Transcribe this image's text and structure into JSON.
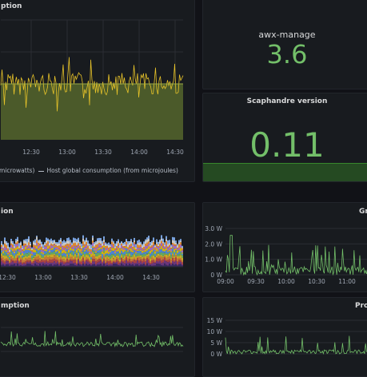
{
  "colors": {
    "background": "#111217",
    "panel": "#181b1f",
    "green": "#73bf69",
    "yellow": "#e6c229",
    "olive_fill": "#4b5a2a"
  },
  "panel_main": {
    "title": "ption",
    "legend": [
      "microwatts)",
      "Host global consumption (from microjoules)"
    ],
    "chart_data": {
      "type": "line",
      "x": [
        "12:30",
        "13:00",
        "13:30",
        "14:00",
        "14:30"
      ],
      "series": [
        {
          "name": "Host global consumption (from microjoules)",
          "values": [
            0.55,
            0.6,
            0.58,
            0.6,
            0.58
          ]
        }
      ]
    }
  },
  "panel_awx": {
    "name": "awx-manage",
    "value": "3.6"
  },
  "panel_version": {
    "title": "Scaphandre version",
    "value": "0.11"
  },
  "panel_stacked": {
    "title": "ion",
    "chart_data": {
      "type": "area",
      "x": [
        "12:30",
        "13:00",
        "13:30",
        "14:00",
        "14:30"
      ]
    }
  },
  "panel_gr": {
    "title": "Gr",
    "chart_data": {
      "type": "line",
      "y_ticks": [
        "3.0 W",
        "2.0 W",
        "1.0 W",
        "0 W"
      ],
      "x": [
        "09:00",
        "09:30",
        "10:00",
        "10:30",
        "11:00"
      ],
      "ylim": [
        0,
        3
      ]
    }
  },
  "panel_consumption": {
    "title": "mption",
    "chart_data": {
      "type": "line"
    }
  },
  "panel_pro": {
    "title": "Pro",
    "chart_data": {
      "type": "line",
      "y_ticks": [
        "15 W",
        "10 W",
        "5 W",
        "0 W"
      ],
      "ylim": [
        0,
        15
      ]
    }
  }
}
